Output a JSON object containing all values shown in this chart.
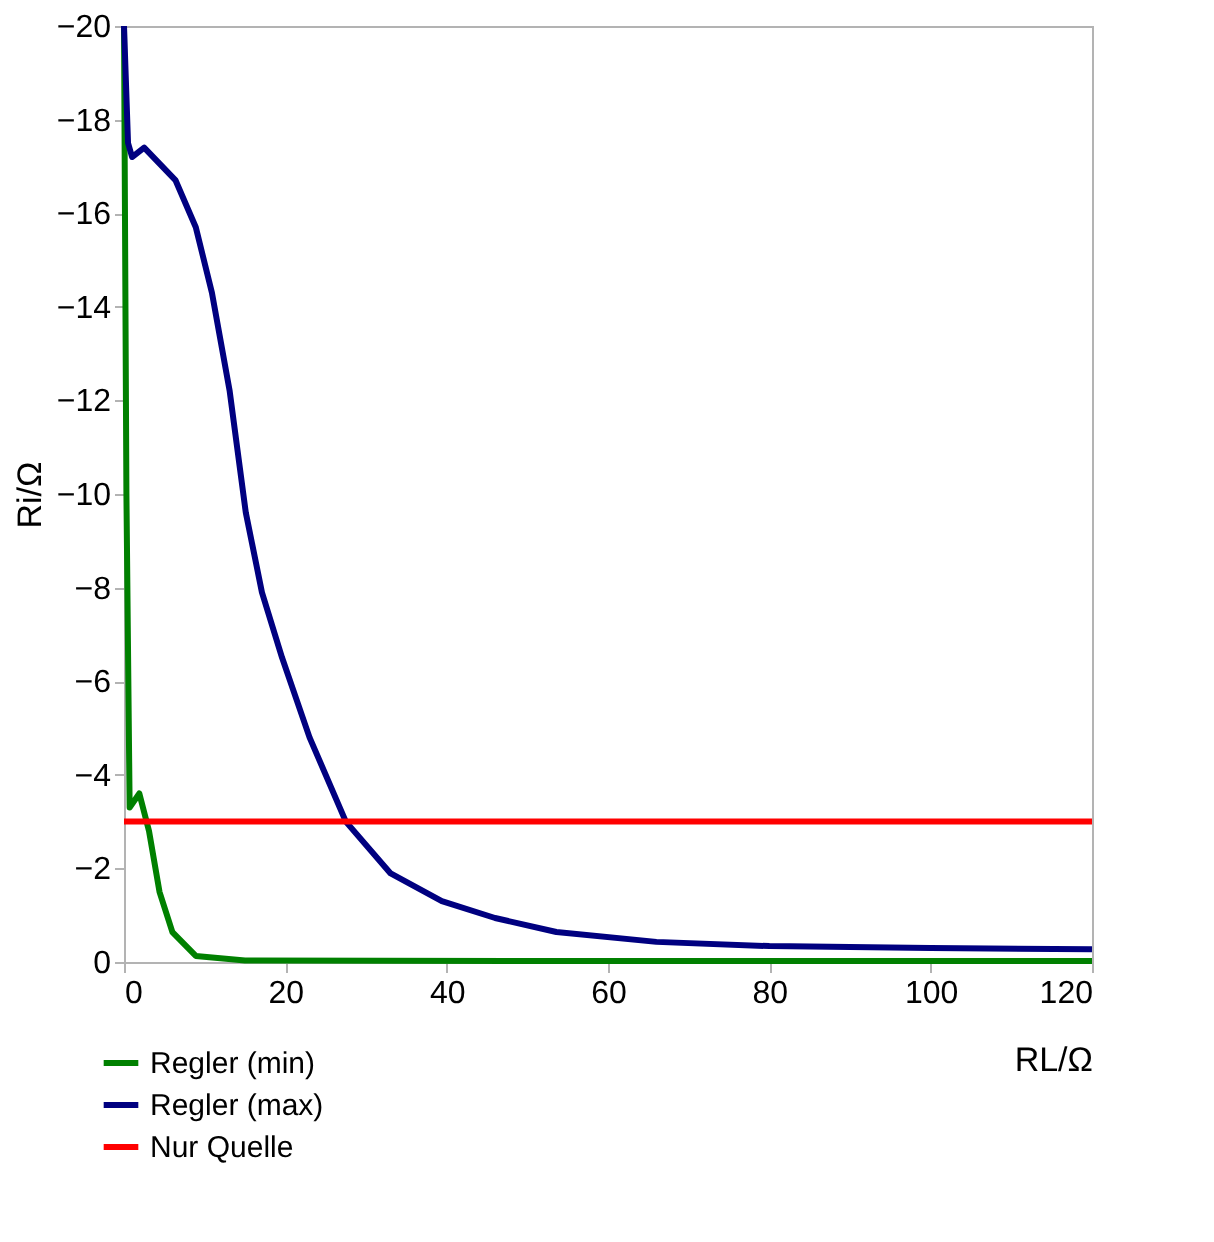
{
  "chart_data": {
    "type": "line",
    "xlabel": "RL/Ω",
    "ylabel": "Ri/Ω",
    "xlim": [
      0,
      120
    ],
    "xticks": [
      0,
      20,
      40,
      60,
      80,
      100,
      120
    ],
    "ylim": [
      0,
      -20
    ],
    "yticks": [
      0,
      -2,
      -4,
      -6,
      -8,
      -10,
      -12,
      -14,
      -16,
      -18,
      -20
    ],
    "grid": false,
    "legend": "bottom left",
    "marker": "none",
    "line_style": "solid",
    "series": [
      {
        "name": "Regler (min)",
        "color": "#008000",
        "x": [
          0,
          0.3,
          0.7,
          1.9,
          3.1,
          4.4,
          6,
          8.9,
          15,
          50,
          120
        ],
        "values": [
          -20,
          -10,
          -3.3,
          -3.6,
          -2.8,
          -1.5,
          -0.64,
          -0.13,
          -0.03,
          -0.02,
          -0.02
        ]
      },
      {
        "name": "Regler (max)",
        "color": "#000080",
        "x": [
          0,
          0.5,
          1,
          2.5,
          6.4,
          8.9,
          10.9,
          13.1,
          15.1,
          17.1,
          19.6,
          23,
          27.5,
          33,
          39.4,
          46,
          53.6,
          66,
          80,
          100,
          120
        ],
        "values": [
          -20,
          -17.5,
          -17.2,
          -17.4,
          -16.7,
          -15.7,
          -14.3,
          -12.2,
          -9.6,
          -7.9,
          -6.5,
          -4.8,
          -3.0,
          -1.9,
          -1.3,
          -0.94,
          -0.64,
          -0.43,
          -0.34,
          -0.3,
          -0.27
        ]
      },
      {
        "name": "Nur Quelle",
        "color": "#ff0000",
        "x": [
          0,
          120
        ],
        "values": [
          -3,
          -3
        ]
      }
    ]
  }
}
